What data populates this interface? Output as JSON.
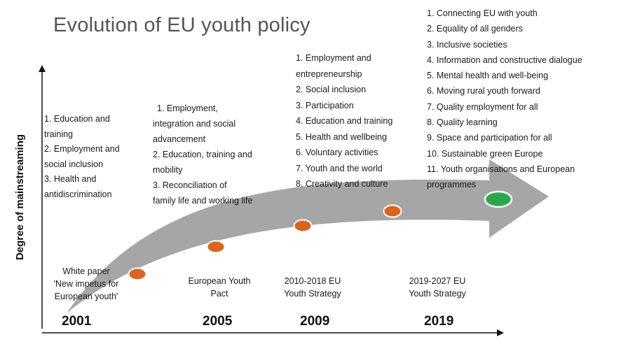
{
  "title": "Evolution of EU youth policy",
  "y_axis_label": "Degree of mainstreaming",
  "colors": {
    "arrow": "#a6a6a6",
    "milestone_dot": "#d9651e",
    "final_dot": "#2ca84a",
    "dot_outline": "#ffffff",
    "axis": "#111111"
  },
  "periods": [
    {
      "year": "2001",
      "milestone": [
        "White paper",
        "'New impetus for",
        "European youth'"
      ],
      "items": [
        "1. Education and",
        "training",
        "2. Employment and",
        "social inclusion",
        "3. Health and",
        "antidiscrimination"
      ]
    },
    {
      "year": "2005",
      "milestone": [
        "European Youth",
        "Pact"
      ],
      "items": [
        "1. Employment,",
        "integration and social",
        "advancement",
        "2. Education, training and",
        "mobility",
        "3. Reconciliation of",
        "family life and working life"
      ]
    },
    {
      "year": "2009",
      "milestone": [
        "2010-2018 EU",
        "Youth Strategy"
      ],
      "items": [
        "1. Employment and",
        "entrepreneurship",
        "2. Social inclusion",
        "3. Participation",
        "4. Education and training",
        "5. Health and wellbeing",
        "6. Voluntary activities",
        "7. Youth and the world",
        "8. Creativity and culture"
      ]
    },
    {
      "year": "2019",
      "milestone": [
        "2019-2027 EU",
        "Youth Strategy"
      ],
      "items": [
        "1. Connecting EU with youth",
        "2. Equality of all genders",
        "3. Inclusive societies",
        "4. Information and constructive dialogue",
        "5. Mental health and well-being",
        "6. Moving rural youth forward",
        "7. Quality employment for all",
        "8. Quality learning",
        "9. Space and participation for all",
        "10. Sustainable green Europe",
        "11. Youth organisations and European",
        "programmes"
      ]
    }
  ]
}
